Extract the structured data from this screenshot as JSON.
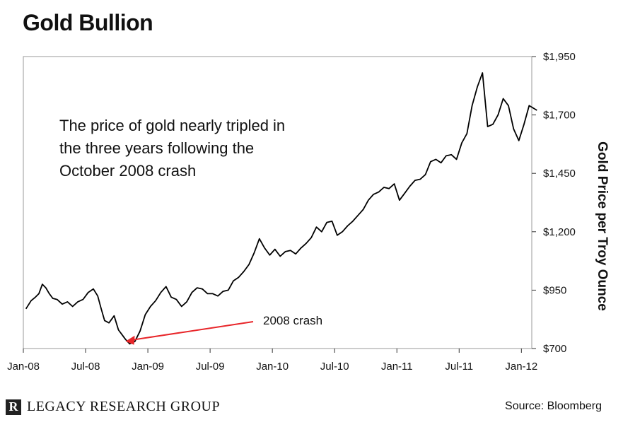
{
  "title": "Gold Bullion",
  "annotation_lines": [
    "The price of gold nearly tripled in",
    "the three years following the",
    "October 2008 crash"
  ],
  "logo": {
    "mark": "R",
    "text": "LEGACY RESEARCH GROUP"
  },
  "source": "Source: Bloomberg",
  "colors": {
    "line": "#000000",
    "arrow": "#e8262a",
    "frame": "#9a9a9a"
  },
  "chart_data": {
    "type": "line",
    "title": "Gold Bullion",
    "ylabel": "Gold Price per Troy Ounce",
    "ylim": [
      700,
      1950
    ],
    "y_ticks": [
      700,
      950,
      1200,
      1450,
      1700,
      1950
    ],
    "y_tick_labels": [
      "$700",
      "$950",
      "$1,200",
      "$1,450",
      "$1,700",
      "$1,950"
    ],
    "x_ticks": [
      "Jan-08",
      "Jul-08",
      "Jan-09",
      "Jul-09",
      "Jan-10",
      "Jul-10",
      "Jan-11",
      "Jul-11",
      "Jan-12"
    ],
    "grid": false,
    "series": [
      {
        "x": [
          "2008-01",
          "2008-01",
          "2008-02",
          "2008-02",
          "2008-02",
          "2008-03",
          "2008-03",
          "2008-03",
          "2008-04",
          "2008-04",
          "2008-05",
          "2008-05",
          "2008-06",
          "2008-06",
          "2008-07",
          "2008-07",
          "2008-08",
          "2008-08",
          "2008-08",
          "2008-09",
          "2008-09",
          "2008-10",
          "2008-10",
          "2008-10",
          "2008-11",
          "2008-11",
          "2008-12",
          "2008-12",
          "2009-01",
          "2009-01",
          "2009-02",
          "2009-02",
          "2009-03",
          "2009-03",
          "2009-04",
          "2009-04",
          "2009-05",
          "2009-05",
          "2009-06",
          "2009-06",
          "2009-07",
          "2009-07",
          "2009-08",
          "2009-08",
          "2009-09",
          "2009-09",
          "2009-10",
          "2009-10",
          "2009-11",
          "2009-11",
          "2009-12",
          "2009-12",
          "2010-01",
          "2010-01",
          "2010-02",
          "2010-02",
          "2010-03",
          "2010-03",
          "2010-04",
          "2010-04",
          "2010-05",
          "2010-05",
          "2010-06",
          "2010-06",
          "2010-07",
          "2010-07",
          "2010-08",
          "2010-08",
          "2010-09",
          "2010-09",
          "2010-10",
          "2010-10",
          "2010-11",
          "2010-11",
          "2010-12",
          "2010-12",
          "2011-01",
          "2011-01",
          "2011-02",
          "2011-02",
          "2011-03",
          "2011-03",
          "2011-04",
          "2011-04",
          "2011-05",
          "2011-05",
          "2011-06",
          "2011-06",
          "2011-07",
          "2011-07",
          "2011-08",
          "2011-08",
          "2011-09",
          "2011-09",
          "2011-10",
          "2011-10",
          "2011-11",
          "2011-11",
          "2011-12",
          "2011-12",
          "2012-01",
          "2012-01",
          "2012-02"
        ],
        "y": [
          870,
          905,
          920,
          935,
          975,
          960,
          935,
          915,
          910,
          890,
          900,
          880,
          900,
          910,
          940,
          955,
          925,
          870,
          820,
          810,
          840,
          780,
          760,
          740,
          720,
          730,
          775,
          845,
          880,
          905,
          940,
          965,
          920,
          910,
          880,
          900,
          940,
          960,
          955,
          935,
          935,
          925,
          945,
          950,
          990,
          1005,
          1030,
          1060,
          1110,
          1170,
          1130,
          1100,
          1125,
          1095,
          1115,
          1120,
          1105,
          1130,
          1150,
          1175,
          1220,
          1200,
          1240,
          1245,
          1185,
          1200,
          1225,
          1245,
          1270,
          1295,
          1335,
          1360,
          1370,
          1390,
          1385,
          1405,
          1335,
          1365,
          1395,
          1420,
          1425,
          1445,
          1500,
          1510,
          1495,
          1525,
          1530,
          1510,
          1580,
          1620,
          1740,
          1820,
          1880,
          1650,
          1660,
          1700,
          1770,
          1740,
          1640,
          1590,
          1660,
          1740,
          1720
        ]
      }
    ],
    "annotations": [
      {
        "text": "2008 crash",
        "x": "2008-10",
        "y": 725
      }
    ]
  }
}
